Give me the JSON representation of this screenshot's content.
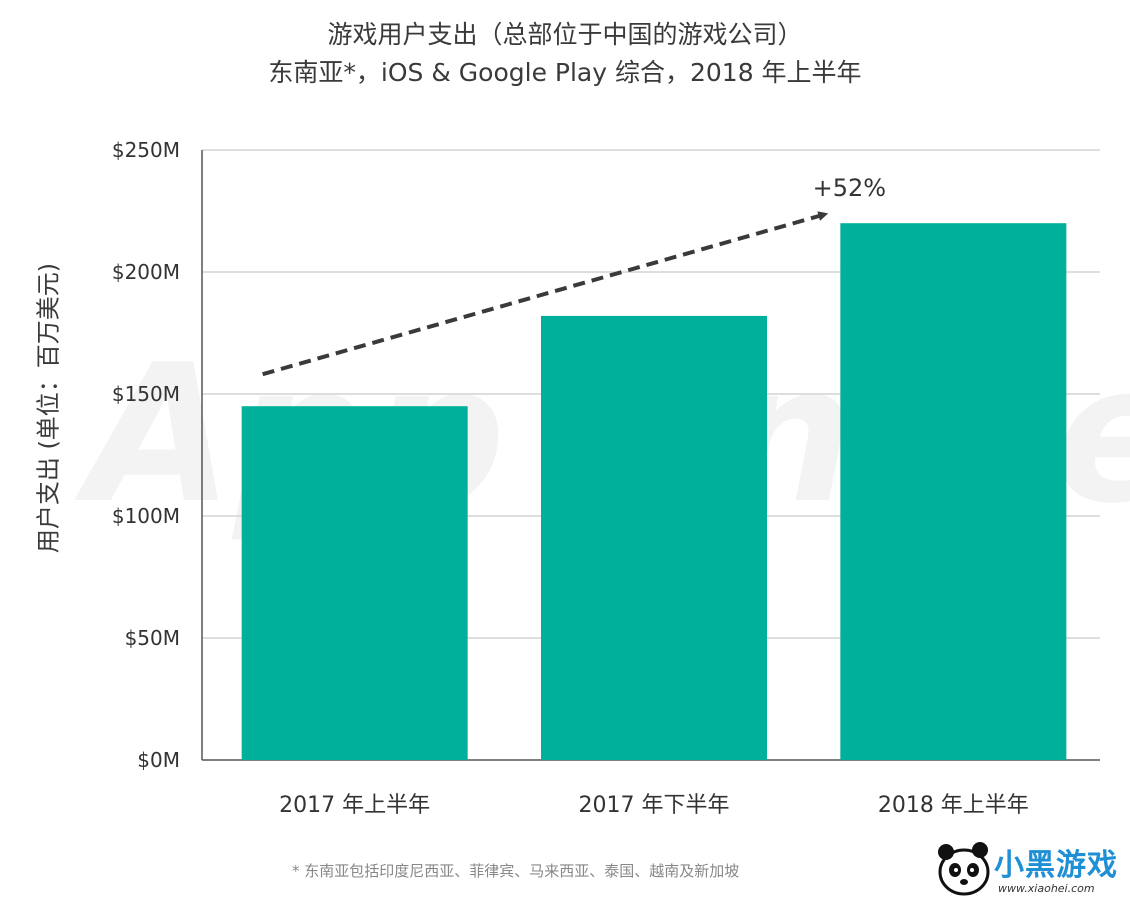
{
  "header": {
    "title": "游戏用户支出（总部位于中国的游戏公司）",
    "subtitle": "东南亚*，iOS & Google Play 综合，2018 年上半年"
  },
  "chart_data": {
    "type": "bar",
    "categories": [
      "2017 年上半年",
      "2017 年下半年",
      "2018 年上半年"
    ],
    "values": [
      145,
      182,
      220
    ],
    "unit": "M USD",
    "ylabel": "用户支出 (单位：百万美元)",
    "ylim": [
      0,
      250
    ],
    "yticks": [
      0,
      50,
      100,
      150,
      200,
      250
    ],
    "ytick_labels": [
      "$0M",
      "$50M",
      "$100M",
      "$150M",
      "$200M",
      "$250M"
    ],
    "grid": true,
    "bar_color": "#00b09b",
    "annotation": {
      "text": "+52%",
      "arrow_from_category": 0,
      "arrow_to_category": 2
    }
  },
  "watermark": "App Annie",
  "footnote": "* 东南亚包括印度尼西亚、菲律宾、马来西亚、泰国、越南及新加坡",
  "logo": {
    "text": "小黑游戏",
    "url": "www.xiaohei.com"
  }
}
